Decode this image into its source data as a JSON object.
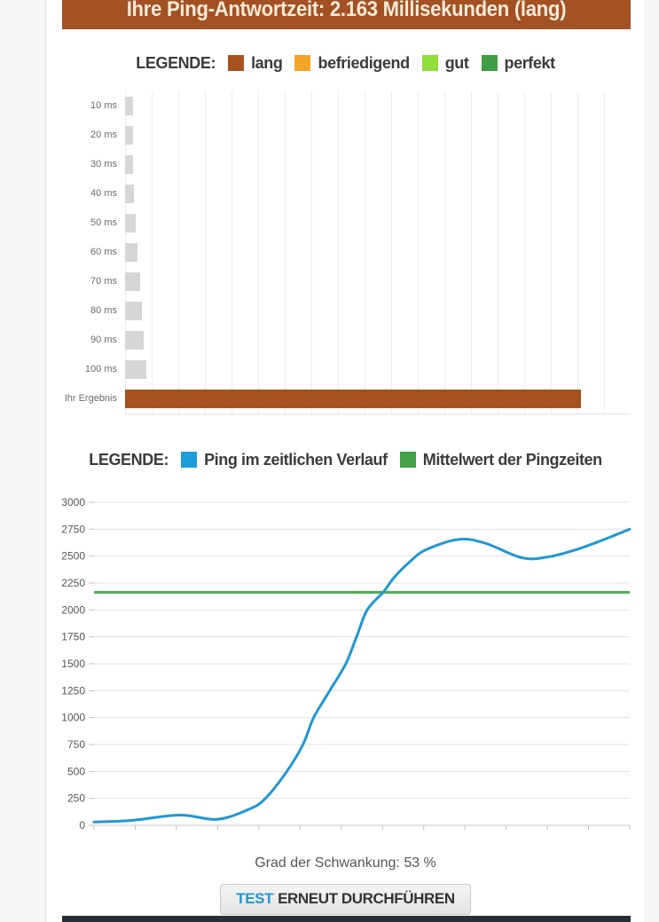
{
  "banner": {
    "title": "Ihre Ping-Antwortzeit: 2.163 Millisekunden (lang)",
    "background": "#a35123",
    "text_color": "#f7ead8"
  },
  "legend_scale": {
    "label": "LEGENDE:",
    "items": [
      {
        "label": "lang",
        "color": "#a5521e"
      },
      {
        "label": "befriedigend",
        "color": "#f4a427"
      },
      {
        "label": "gut",
        "color": "#8fde3c"
      },
      {
        "label": "perfekt",
        "color": "#3f9e42"
      }
    ]
  },
  "legend_line": {
    "label": "LEGENDE:",
    "items": [
      {
        "label": "Ping im zeitlichen Verlauf",
        "color": "#1e9cd8"
      },
      {
        "label": "Mittelwert der Pingzeiten",
        "color": "#43a047"
      }
    ]
  },
  "chart_data": [
    {
      "type": "bar",
      "orientation": "horizontal",
      "title": "",
      "categories": [
        "10 ms",
        "20 ms",
        "30 ms",
        "40 ms",
        "50 ms",
        "60 ms",
        "70 ms",
        "80 ms",
        "90 ms",
        "100 ms",
        "Ihr Ergebnis"
      ],
      "values": [
        10,
        20,
        30,
        40,
        50,
        60,
        70,
        80,
        90,
        100,
        2163
      ],
      "bar_colors": [
        "#d6d6d6",
        "#d6d6d6",
        "#d6d6d6",
        "#d6d6d6",
        "#d6d6d6",
        "#d6d6d6",
        "#d6d6d6",
        "#d6d6d6",
        "#d6d6d6",
        "#d6d6d6",
        "#a5521e"
      ],
      "xlim": [
        0,
        2400
      ],
      "grid": "vertical",
      "legend_position": "top"
    },
    {
      "type": "line",
      "title": "",
      "ylim": [
        0,
        3000
      ],
      "yticks": [
        0,
        250,
        500,
        750,
        1000,
        1250,
        1500,
        1750,
        2000,
        2250,
        2500,
        2750,
        3000
      ],
      "grid": "horizontal",
      "legend_position": "top",
      "series": [
        {
          "name": "Ping im zeitlichen Verlauf",
          "color": "#2097d3",
          "points": [
            [
              0,
              30
            ],
            [
              7,
              45
            ],
            [
              16,
              95
            ],
            [
              23,
              55
            ],
            [
              29,
              150
            ],
            [
              32,
              250
            ],
            [
              36,
              500
            ],
            [
              39,
              750
            ],
            [
              41,
              1000
            ],
            [
              44,
              1250
            ],
            [
              47,
              1500
            ],
            [
              49,
              1750
            ],
            [
              51,
              2000
            ],
            [
              54,
              2166
            ],
            [
              56,
              2300
            ],
            [
              59,
              2450
            ],
            [
              62,
              2560
            ],
            [
              68,
              2655
            ],
            [
              73,
              2620
            ],
            [
              80,
              2483
            ],
            [
              85,
              2495
            ],
            [
              90,
              2560
            ],
            [
              95,
              2650
            ],
            [
              100,
              2750
            ]
          ]
        },
        {
          "name": "Mittelwert der Pingzeiten",
          "color": "#4caf50",
          "mean_value": 2163
        }
      ]
    }
  ],
  "fluctuation": {
    "text": "Grad der Schwankung: 53 %"
  },
  "retest_button": {
    "highlight": "TEST",
    "rest": "ERNEUT DURCHFÜHREN",
    "highlight_color": "#2097d3"
  },
  "footer": {
    "color": "#272e38"
  }
}
